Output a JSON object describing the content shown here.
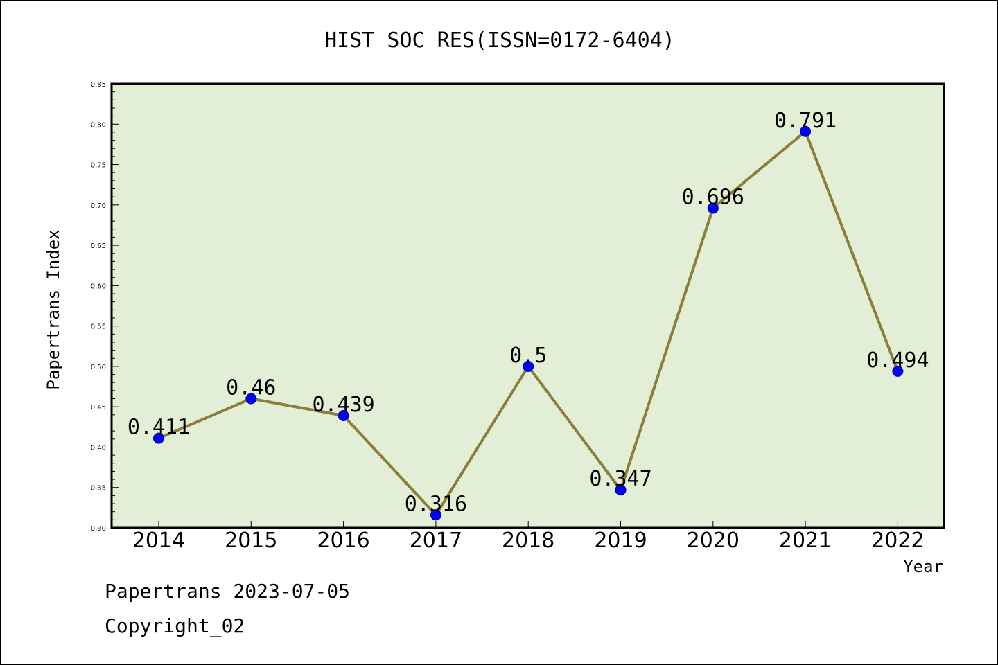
{
  "chart_data": {
    "type": "line",
    "title": "HIST SOC RES(ISSN=0172-6404)",
    "xlabel": "Year",
    "ylabel": "Papertrans Index",
    "categories": [
      "2014",
      "2015",
      "2016",
      "2017",
      "2018",
      "2019",
      "2020",
      "2021",
      "2022"
    ],
    "values": [
      0.411,
      0.46,
      0.439,
      0.316,
      0.5,
      0.347,
      0.696,
      0.791,
      0.494
    ],
    "data_labels": [
      "0.411",
      "0.46",
      "0.439",
      "0.316",
      "0.5",
      "0.347",
      "0.696",
      "0.791",
      "0.494"
    ],
    "ylim": [
      0.3,
      0.85
    ],
    "yticks": [
      "0.30",
      "0.35",
      "0.40",
      "0.45",
      "0.50",
      "0.55",
      "0.60",
      "0.65",
      "0.70",
      "0.75",
      "0.80",
      "0.85"
    ],
    "grid": false,
    "legend": "none",
    "colors": {
      "plot_background": "#e2efd6",
      "line": "#8b7d3a",
      "marker": "#0000ff",
      "axes": "#000000"
    }
  },
  "footer": {
    "line1": "Papertrans 2023-07-05",
    "line2": "Copyright_02"
  }
}
